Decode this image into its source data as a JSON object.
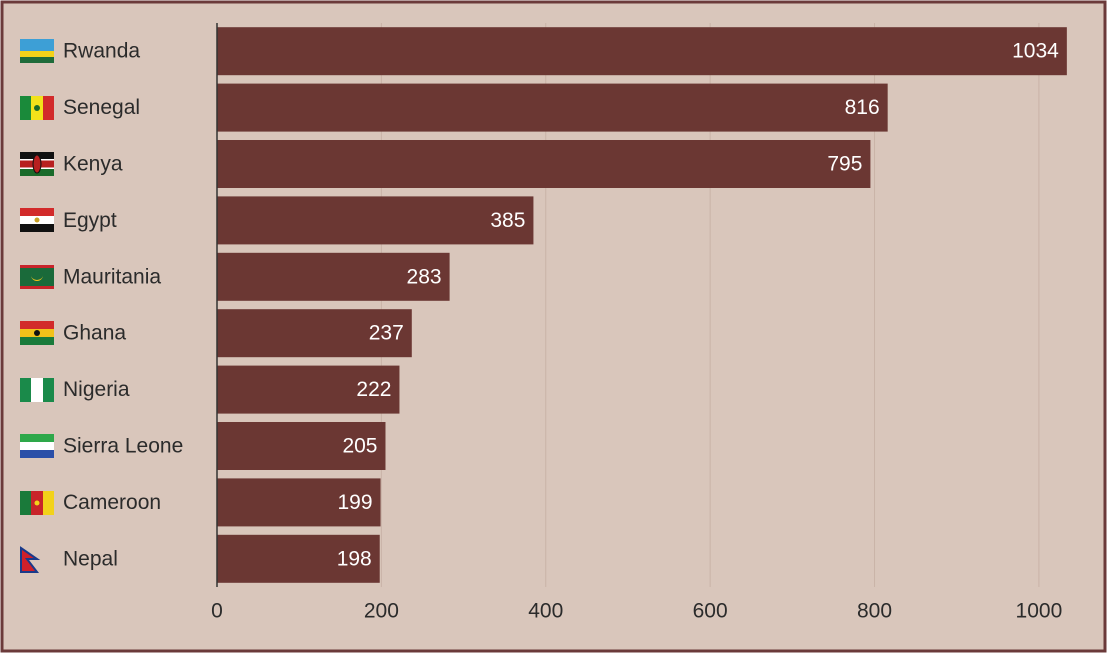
{
  "chart_data": {
    "type": "bar",
    "orientation": "horizontal",
    "categories": [
      "Rwanda",
      "Senegal",
      "Kenya",
      "Egypt",
      "Mauritania",
      "Ghana",
      "Nigeria",
      "Sierra Leone",
      "Cameroon",
      "Nepal"
    ],
    "values": [
      1034,
      816,
      795,
      385,
      283,
      237,
      222,
      205,
      199,
      198
    ],
    "color": "#6b3733",
    "xlim": [
      0,
      1050
    ],
    "xticks": [
      0,
      200,
      400,
      600,
      800,
      1000
    ],
    "grid": true
  }
}
